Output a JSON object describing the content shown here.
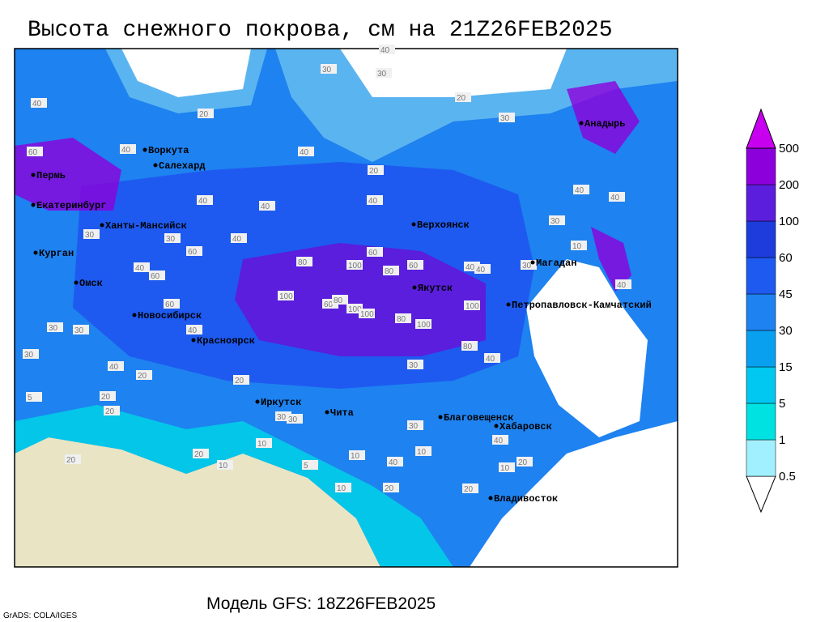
{
  "title": "Высота снежного покрова, см на 21Z26FEB2025",
  "footer": "Модель GFS: 18Z26FEB2025",
  "credit": "GrADS: COLA/IGES",
  "colorbar": {
    "levels": [
      0.5,
      1,
      5,
      15,
      30,
      45,
      60,
      100,
      200,
      500
    ],
    "colors": [
      "#ffffff",
      "#a0f0ff",
      "#00e1e1",
      "#00c8f0",
      "#0aa0f0",
      "#1e82f0",
      "#1e5af0",
      "#1e3cdc",
      "#5a1edc",
      "#8c00dc",
      "#c800f0"
    ]
  },
  "cities": [
    "Анадырь",
    "Воркута",
    "Салехард",
    "Пермь",
    "Екатеринбург",
    "Ханты-Мансийск",
    "Верхоянск",
    "Курган",
    "Омск",
    "Магадан",
    "Якутск",
    "Петропавловск-Камчатский",
    "Новосибирск",
    "Красноярск",
    "Иркутск",
    "Чита",
    "Благовещенск",
    "Хабаровск",
    "Владивосток"
  ],
  "contour_labels": [
    40,
    30,
    30,
    40,
    20,
    20,
    30,
    40,
    60,
    40,
    20,
    40,
    30,
    30,
    40,
    20,
    40,
    40,
    30,
    40,
    40,
    40,
    40,
    30,
    40,
    60,
    80,
    100,
    60,
    80,
    60,
    40,
    100,
    60,
    100,
    80,
    100,
    100,
    80,
    100,
    60,
    60,
    30,
    40,
    80,
    40,
    40,
    30,
    20,
    20,
    30,
    20,
    30,
    10,
    20,
    30,
    30,
    10,
    20,
    10,
    5,
    20,
    30,
    10,
    20,
    10,
    40,
    40,
    10,
    5,
    10,
    20,
    20
  ]
}
